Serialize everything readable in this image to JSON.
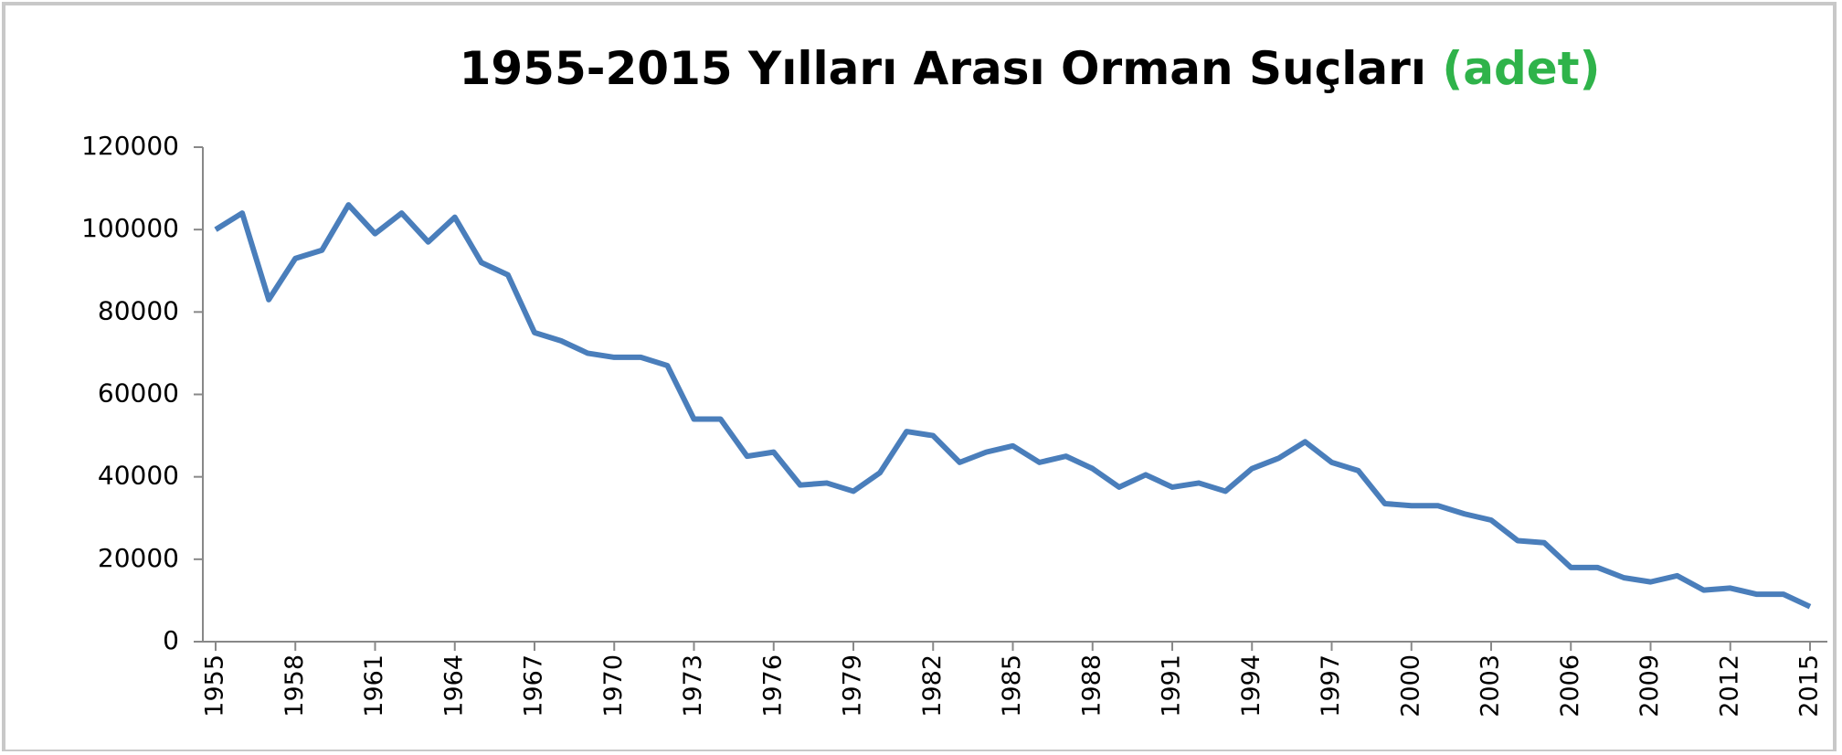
{
  "chart_data": {
    "type": "line",
    "title": "1955-2015 Yılları Arası Orman Suçları",
    "title_suffix": "(adet)",
    "x": [
      1955,
      1956,
      1957,
      1958,
      1959,
      1960,
      1961,
      1962,
      1963,
      1964,
      1965,
      1966,
      1967,
      1968,
      1969,
      1970,
      1971,
      1972,
      1973,
      1974,
      1975,
      1976,
      1977,
      1978,
      1979,
      1980,
      1981,
      1982,
      1983,
      1984,
      1985,
      1986,
      1987,
      1988,
      1989,
      1990,
      1991,
      1992,
      1993,
      1994,
      1995,
      1996,
      1997,
      1998,
      1999,
      2000,
      2001,
      2002,
      2003,
      2004,
      2005,
      2006,
      2007,
      2008,
      2009,
      2010,
      2011,
      2012,
      2013,
      2014,
      2015
    ],
    "series": [
      {
        "name": null,
        "color": "#4a7ebb",
        "values": [
          100000,
          104000,
          83000,
          93000,
          95000,
          106000,
          99000,
          104000,
          97000,
          103000,
          92000,
          89000,
          75000,
          73000,
          70000,
          69000,
          69000,
          67000,
          54000,
          54000,
          45000,
          46000,
          38000,
          38500,
          36500,
          41000,
          51000,
          50000,
          43500,
          46000,
          47500,
          43500,
          45000,
          42000,
          37500,
          40500,
          37500,
          38500,
          36500,
          42000,
          44500,
          48500,
          43500,
          41500,
          33500,
          33000,
          33000,
          31000,
          29500,
          24500,
          24000,
          18000,
          18000,
          15500,
          14500,
          16000,
          12500,
          13000,
          11500,
          11500,
          8500
        ]
      }
    ],
    "xlim": [
      1955,
      2015
    ],
    "xticks": [
      1955,
      1958,
      1961,
      1964,
      1967,
      1970,
      1973,
      1976,
      1979,
      1982,
      1985,
      1988,
      1991,
      1994,
      1997,
      2000,
      2003,
      2006,
      2009,
      2012,
      2015
    ],
    "ylim": [
      0,
      120000
    ],
    "yticks": [
      0,
      20000,
      40000,
      60000,
      80000,
      100000,
      120000
    ],
    "grid": false
  }
}
